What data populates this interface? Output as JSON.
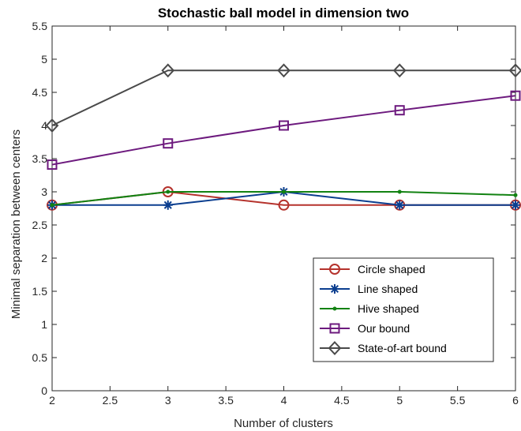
{
  "chart_data": {
    "type": "line",
    "title": "Stochastic ball model in dimension two",
    "xlabel": "Number of clusters",
    "ylabel": "Minimal separation between centers",
    "x": [
      2,
      3,
      4,
      5,
      6
    ],
    "xlim": [
      2,
      6
    ],
    "ylim": [
      0,
      5.5
    ],
    "xticks": [
      "2",
      "2.5",
      "3",
      "3.5",
      "4",
      "4.5",
      "5",
      "5.5",
      "6"
    ],
    "yticks": [
      "0",
      "0.5",
      "1",
      "1.5",
      "2",
      "2.5",
      "3",
      "3.5",
      "4",
      "4.5",
      "5",
      "5.5"
    ],
    "grid": false,
    "legend_position": "bottom-right",
    "series": [
      {
        "name": "Circle shaped",
        "values": [
          2.8,
          3.0,
          2.8,
          2.8,
          2.8
        ],
        "color": "#b5322c",
        "marker": "circle"
      },
      {
        "name": "Line shaped",
        "values": [
          2.8,
          2.8,
          3.0,
          2.8,
          2.8
        ],
        "color": "#0b3e8f",
        "marker": "asterisk"
      },
      {
        "name": "Hive shaped",
        "values": [
          2.8,
          3.0,
          3.0,
          3.0,
          2.95
        ],
        "color": "#128212",
        "marker": "dot"
      },
      {
        "name": "Our bound",
        "values": [
          3.41,
          3.73,
          4.0,
          4.23,
          4.45
        ],
        "color": "#6d1a7e",
        "marker": "square"
      },
      {
        "name": "State-of-art bound",
        "values": [
          4.0,
          4.83,
          4.83,
          4.83,
          4.83
        ],
        "color": "#4a4a4a",
        "marker": "diamond"
      }
    ]
  }
}
